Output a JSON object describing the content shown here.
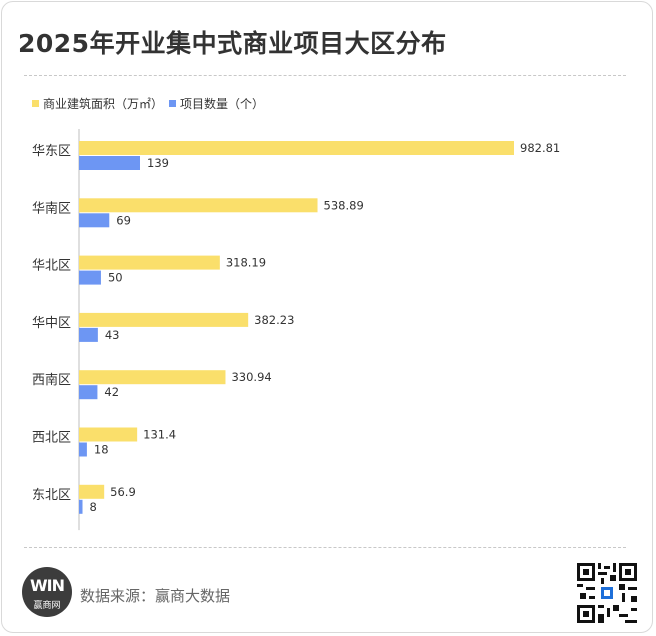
{
  "title": "2025年开业集中式商业项目大区分布",
  "legend": {
    "area_label": "商业建筑面积（万㎡）",
    "count_label": "项目数量（个）"
  },
  "colors": {
    "area": "#fadf6b",
    "count": "#6d96f3",
    "axis": "#bfbfbf",
    "text": "#333333"
  },
  "chart_data": {
    "type": "bar",
    "orientation": "horizontal",
    "categories": [
      "华东区",
      "华南区",
      "华北区",
      "华中区",
      "西南区",
      "西北区",
      "东北区"
    ],
    "series": [
      {
        "name": "商业建筑面积（万㎡）",
        "values": [
          982.81,
          538.89,
          318.19,
          382.23,
          330.94,
          131.4,
          56.9
        ],
        "labels": [
          "982.81",
          "538.89",
          "318.19",
          "382.23",
          "330.94",
          "131.4",
          "56.9"
        ]
      },
      {
        "name": "项目数量（个）",
        "values": [
          139,
          69,
          50,
          43,
          42,
          18,
          8
        ],
        "labels": [
          "139",
          "69",
          "50",
          "43",
          "42",
          "18",
          "8"
        ]
      }
    ],
    "legend_position": "top-left",
    "grid": false
  },
  "footer": {
    "logo_mark": "WIN",
    "logo_text": "赢商网",
    "source": "数据来源：赢商大数据",
    "qr_icon": "qr-code-icon"
  }
}
